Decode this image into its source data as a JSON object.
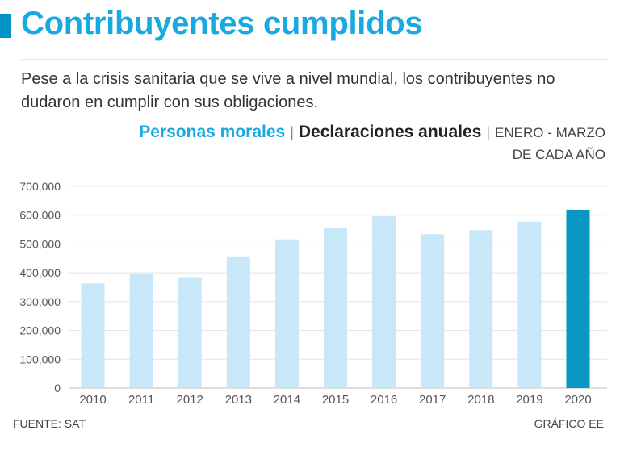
{
  "header": {
    "title": "Contribuyentes cumplidos",
    "subtitle": "Pese a la crisis sanitaria que se vive a nivel mundial, los contribuyentes no dudaron en cumplir con sus obligaciones."
  },
  "legend": {
    "primary": "Personas morales",
    "secondary": "Declaraciones anuales",
    "period_line1": "ENERO - MARZO",
    "period_line2": "DE CADA AÑO",
    "separator": "|"
  },
  "footer": {
    "source": "FUENTE: SAT",
    "credit": "GRÁFICO EE"
  },
  "colors": {
    "bar": "#c8e7f8",
    "bar_highlight": "#0797c2",
    "title": "#19a9e1",
    "grid": "#e3e3e3"
  },
  "chart_data": {
    "type": "bar",
    "title": "Personas morales | Declaraciones anuales",
    "xlabel": "",
    "ylabel": "",
    "categories": [
      "2010",
      "2011",
      "2012",
      "2013",
      "2014",
      "2015",
      "2016",
      "2017",
      "2018",
      "2019",
      "2020"
    ],
    "values": [
      363000,
      398000,
      385000,
      457000,
      516000,
      554000,
      596000,
      534000,
      548000,
      577000,
      619000
    ],
    "highlight": "2020",
    "ylim": [
      0,
      700000
    ],
    "yticks": [
      0,
      100000,
      200000,
      300000,
      400000,
      500000,
      600000,
      700000
    ],
    "ytick_labels": [
      "0",
      "100,000",
      "200,000",
      "300,000",
      "400,000",
      "500,000",
      "600,000",
      "700,000"
    ],
    "grid": true
  }
}
